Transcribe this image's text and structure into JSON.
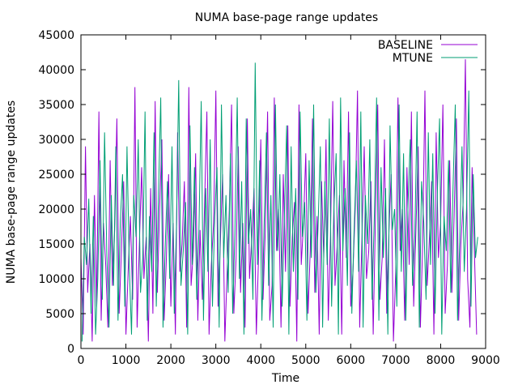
{
  "chart_data": {
    "type": "line",
    "title": "NUMA base-page range updates",
    "xlabel": "Time",
    "ylabel": "NUMA base-page range updates",
    "xlim": [
      0,
      9000
    ],
    "ylim": [
      0,
      45000
    ],
    "xticks": [
      0,
      1000,
      2000,
      3000,
      4000,
      5000,
      6000,
      7000,
      8000,
      9000
    ],
    "yticks": [
      0,
      5000,
      10000,
      15000,
      20000,
      25000,
      30000,
      35000,
      40000,
      45000
    ],
    "grid": false,
    "legend_position": "top-right",
    "x_sampling": {
      "start": 0,
      "step": 50,
      "count": 176
    },
    "series": [
      {
        "name": "BASELINE",
        "color": "#9400d3",
        "values": [
          13000,
          2000,
          29000,
          8000,
          15000,
          1000,
          22000,
          6000,
          34000,
          4000,
          18000,
          12000,
          3000,
          27000,
          9000,
          17000,
          33000,
          5000,
          14000,
          24000,
          2000,
          11000,
          19000,
          7000,
          37500,
          3000,
          15000,
          26000,
          10000,
          16000,
          1000,
          23000,
          5000,
          35500,
          8000,
          20000,
          30000,
          4000,
          13000,
          25000,
          6000,
          18000,
          2000,
          31000,
          11000,
          15000,
          24000,
          3000,
          37500,
          9000,
          14000,
          28000,
          4000,
          17000,
          7000,
          21000,
          34000,
          2000,
          12000,
          18000,
          37000,
          6000,
          15000,
          25000,
          1000,
          11000,
          20000,
          35000,
          5000,
          13000,
          29000,
          8000,
          18000,
          3000,
          33000,
          10000,
          16000,
          23000,
          2000,
          13000,
          30000,
          7000,
          17000,
          34000,
          4000,
          9000,
          36000,
          14000,
          20000,
          3000,
          25000,
          11000,
          32000,
          6000,
          16000,
          21000,
          1000,
          35000,
          12000,
          18000,
          28000,
          5000,
          14000,
          33000,
          8000,
          19000,
          2000,
          24000,
          13000,
          30000,
          4000,
          16000,
          35500,
          9000,
          15000,
          22000,
          2000,
          27000,
          13000,
          34000,
          6000,
          11000,
          20000,
          37000,
          3000,
          16000,
          29000,
          10000,
          14000,
          24000,
          2000,
          19000,
          35000,
          7000,
          13000,
          30000,
          5000,
          17000,
          25000,
          1000,
          11000,
          36000,
          14000,
          20000,
          4000,
          26000,
          12000,
          34000,
          6000,
          17000,
          29000,
          3000,
          15000,
          37000,
          9000,
          16000,
          24000,
          2000,
          31000,
          13000,
          18000,
          35000,
          5000,
          12000,
          27000,
          8000,
          19000,
          33000,
          4000,
          15000,
          21000,
          41500,
          10000,
          3000,
          26000,
          14000
        ],
        "values_tail": [
          2000
        ]
      },
      {
        "name": "MTUNE",
        "color": "#009e73",
        "values": [
          1000,
          16000,
          12000,
          21500,
          5000,
          19000,
          2000,
          10000,
          27000,
          7000,
          31000,
          14000,
          3000,
          22000,
          9000,
          29000,
          4000,
          18000,
          25000,
          6000,
          29000,
          12000,
          2000,
          22000,
          16000,
          30000,
          8000,
          13000,
          34000,
          4000,
          19000,
          11000,
          31000,
          6000,
          22000,
          36000,
          3000,
          15000,
          24000,
          10000,
          29000,
          5000,
          18000,
          38500,
          9000,
          14000,
          21000,
          2000,
          32000,
          12000,
          26000,
          7000,
          17000,
          35500,
          4000,
          23000,
          11000,
          30000,
          6000,
          19000,
          26000,
          3000,
          35000,
          13000,
          22000,
          8000,
          28000,
          5000,
          17000,
          36000,
          10000,
          24000,
          2000,
          33000,
          15000,
          20000,
          7000,
          41000,
          12000,
          27000,
          4000,
          18000,
          31000,
          9000,
          22000,
          3000,
          35000,
          14000,
          25000,
          6000,
          19000,
          32000,
          2000,
          29000,
          11000,
          23000,
          7000,
          34000,
          16000,
          21000,
          4000,
          27000,
          13000,
          35000,
          8000,
          18000,
          29000,
          3000,
          24000,
          12000,
          33000,
          6000,
          20000,
          28000,
          2000,
          36000,
          14000,
          23000,
          9000,
          31000,
          5000,
          17000,
          27000,
          11000,
          34000,
          3000,
          22000,
          15000,
          30000,
          7000,
          19000,
          36000,
          4000,
          26000,
          13000,
          23000,
          2000,
          32000,
          17000,
          20000,
          6000,
          35000,
          11000,
          28000,
          4000,
          21000,
          30000,
          9000,
          16000,
          34000,
          3000,
          24000,
          18000,
          7000,
          31000,
          12000,
          28000,
          5000,
          22000,
          33000,
          2000,
          19000,
          14000,
          27000,
          8000,
          23000,
          35000,
          4000,
          16000,
          29000,
          11000,
          20000,
          37000,
          6000,
          25000,
          13000
        ],
        "values_tail": [
          16000
        ]
      }
    ]
  }
}
